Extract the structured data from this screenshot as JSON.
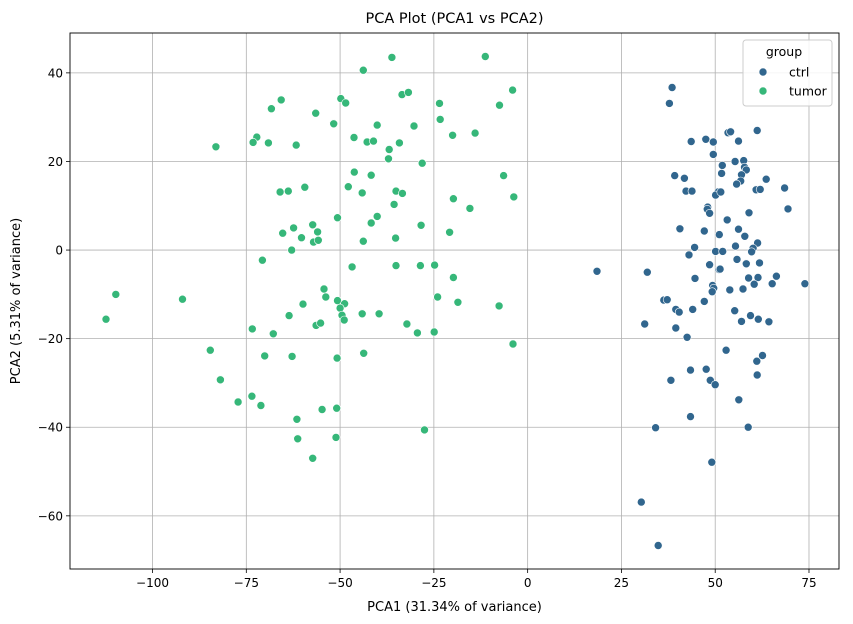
{
  "chart_data": {
    "type": "scatter",
    "title": "PCA Plot (PCA1 vs PCA2)",
    "xlabel": "PCA1 (31.34% of variance)",
    "ylabel": "PCA2 (5.31% of variance)",
    "xlim": [
      -122,
      83
    ],
    "ylim": [
      -72,
      49
    ],
    "xticks": [
      -100,
      -75,
      -50,
      -25,
      0,
      25,
      50,
      75
    ],
    "yticks": [
      -60,
      -40,
      -20,
      0,
      20,
      40
    ],
    "xtick_labels": [
      "−100",
      "−75",
      "−50",
      "−25",
      "0",
      "25",
      "50",
      "75"
    ],
    "ytick_labels": [
      "−60",
      "−40",
      "−20",
      "0",
      "20",
      "40"
    ],
    "grid": true,
    "legend": {
      "title": "group",
      "placement": "top-right"
    },
    "series": [
      {
        "name": "ctrl",
        "color": "#31668e",
        "points": [
          [
            38.5,
            36.7
          ],
          [
            37.8,
            33.1
          ],
          [
            43.6,
            24.5
          ],
          [
            47.5,
            25.0
          ],
          [
            49.5,
            24.4
          ],
          [
            53.4,
            26.5
          ],
          [
            54.1,
            26.7
          ],
          [
            56.2,
            24.6
          ],
          [
            61.2,
            27.0
          ],
          [
            49.5,
            21.6
          ],
          [
            55.3,
            20.0
          ],
          [
            57.6,
            20.2
          ],
          [
            51.9,
            19.1
          ],
          [
            57.8,
            18.7
          ],
          [
            58.3,
            18.1
          ],
          [
            39.2,
            16.8
          ],
          [
            41.8,
            16.2
          ],
          [
            51.7,
            17.3
          ],
          [
            57.0,
            17.0
          ],
          [
            63.6,
            16.0
          ],
          [
            56.8,
            15.6
          ],
          [
            55.7,
            14.9
          ],
          [
            42.2,
            13.3
          ],
          [
            43.8,
            13.3
          ],
          [
            50.8,
            13.1
          ],
          [
            50.1,
            12.4
          ],
          [
            51.5,
            13.1
          ],
          [
            60.9,
            13.6
          ],
          [
            62.0,
            13.7
          ],
          [
            68.5,
            14.0
          ],
          [
            48.0,
            9.7
          ],
          [
            47.9,
            9.2
          ],
          [
            48.5,
            8.3
          ],
          [
            59.0,
            8.4
          ],
          [
            69.4,
            9.3
          ],
          [
            53.2,
            6.8
          ],
          [
            40.6,
            4.8
          ],
          [
            47.1,
            4.3
          ],
          [
            56.2,
            4.7
          ],
          [
            51.1,
            3.5
          ],
          [
            57.9,
            3.1
          ],
          [
            61.3,
            1.6
          ],
          [
            55.4,
            0.9
          ],
          [
            60.1,
            0.4
          ],
          [
            59.7,
            -0.4
          ],
          [
            44.5,
            0.6
          ],
          [
            50.1,
            -0.3
          ],
          [
            43.0,
            -1.1
          ],
          [
            52.0,
            -0.3
          ],
          [
            55.8,
            -2.1
          ],
          [
            58.3,
            -3.1
          ],
          [
            61.8,
            -2.9
          ],
          [
            48.5,
            -3.3
          ],
          [
            51.0,
            -4.4
          ],
          [
            31.9,
            -5.0
          ],
          [
            18.5,
            -4.8
          ],
          [
            44.6,
            -6.4
          ],
          [
            51.3,
            -4.3
          ],
          [
            58.9,
            -6.3
          ],
          [
            61.4,
            -6.2
          ],
          [
            66.3,
            -5.9
          ],
          [
            65.2,
            -7.6
          ],
          [
            57.4,
            -8.8
          ],
          [
            49.3,
            -8.0
          ],
          [
            49.6,
            -8.6
          ],
          [
            49.2,
            -9.4
          ],
          [
            53.9,
            -9.0
          ],
          [
            60.4,
            -7.7
          ],
          [
            73.9,
            -7.6
          ],
          [
            36.3,
            -11.3
          ],
          [
            37.2,
            -11.2
          ],
          [
            39.5,
            -13.4
          ],
          [
            40.4,
            -14.0
          ],
          [
            44.0,
            -13.4
          ],
          [
            47.1,
            -11.6
          ],
          [
            55.2,
            -13.7
          ],
          [
            59.4,
            -14.8
          ],
          [
            31.2,
            -16.7
          ],
          [
            39.5,
            -17.6
          ],
          [
            57.0,
            -16.1
          ],
          [
            61.5,
            -15.6
          ],
          [
            64.3,
            -16.2
          ],
          [
            42.5,
            -19.7
          ],
          [
            52.9,
            -22.6
          ],
          [
            62.6,
            -23.8
          ],
          [
            61.1,
            -25.1
          ],
          [
            38.2,
            -29.4
          ],
          [
            43.4,
            -27.1
          ],
          [
            47.6,
            -26.9
          ],
          [
            48.7,
            -29.4
          ],
          [
            50.0,
            -30.4
          ],
          [
            61.2,
            -28.2
          ],
          [
            56.3,
            -33.8
          ],
          [
            43.4,
            -37.6
          ],
          [
            58.8,
            -40.0
          ],
          [
            34.1,
            -40.1
          ],
          [
            49.1,
            -47.9
          ],
          [
            30.3,
            -56.9
          ],
          [
            34.8,
            -66.7
          ]
        ]
      },
      {
        "name": "tumor",
        "color": "#36b779",
        "points": [
          [
            -36.2,
            43.5
          ],
          [
            -11.3,
            43.7
          ],
          [
            -43.8,
            40.6
          ],
          [
            -4.0,
            36.1
          ],
          [
            -33.5,
            35.1
          ],
          [
            -31.8,
            35.6
          ],
          [
            -49.8,
            34.2
          ],
          [
            -65.7,
            33.9
          ],
          [
            -48.5,
            33.2
          ],
          [
            -68.3,
            31.9
          ],
          [
            -23.5,
            33.1
          ],
          [
            -7.5,
            32.7
          ],
          [
            -56.5,
            30.9
          ],
          [
            -51.7,
            28.5
          ],
          [
            -40.1,
            28.2
          ],
          [
            -30.3,
            28.0
          ],
          [
            -23.3,
            29.5
          ],
          [
            -72.2,
            25.5
          ],
          [
            -73.2,
            24.3
          ],
          [
            -69.1,
            24.2
          ],
          [
            -61.7,
            23.7
          ],
          [
            -46.3,
            25.4
          ],
          [
            -42.8,
            24.4
          ],
          [
            -41.1,
            24.6
          ],
          [
            -36.9,
            22.7
          ],
          [
            -34.2,
            24.2
          ],
          [
            -20.0,
            25.9
          ],
          [
            -14.0,
            26.4
          ],
          [
            -83.1,
            23.3
          ],
          [
            -37.1,
            20.6
          ],
          [
            -28.1,
            19.6
          ],
          [
            -46.2,
            17.6
          ],
          [
            -41.7,
            16.9
          ],
          [
            -6.4,
            16.8
          ],
          [
            -47.8,
            14.3
          ],
          [
            -59.4,
            14.2
          ],
          [
            -66.0,
            13.1
          ],
          [
            -63.8,
            13.3
          ],
          [
            -35.1,
            13.3
          ],
          [
            -33.4,
            12.8
          ],
          [
            -44.1,
            12.9
          ],
          [
            -19.8,
            11.6
          ],
          [
            -3.7,
            12.0
          ],
          [
            -35.6,
            10.3
          ],
          [
            -15.4,
            9.4
          ],
          [
            -40.1,
            7.6
          ],
          [
            -50.7,
            7.3
          ],
          [
            -41.7,
            6.1
          ],
          [
            -57.3,
            5.7
          ],
          [
            -62.4,
            5.0
          ],
          [
            -56.0,
            4.1
          ],
          [
            -65.3,
            3.8
          ],
          [
            -60.3,
            2.8
          ],
          [
            -57.1,
            1.8
          ],
          [
            -55.8,
            2.2
          ],
          [
            -43.8,
            2.0
          ],
          [
            -35.2,
            2.7
          ],
          [
            -28.4,
            5.6
          ],
          [
            -20.8,
            4.0
          ],
          [
            -62.9,
            0.0
          ],
          [
            -70.7,
            -2.3
          ],
          [
            -35.1,
            -3.5
          ],
          [
            -28.6,
            -3.5
          ],
          [
            -24.8,
            -3.4
          ],
          [
            -46.8,
            -3.8
          ],
          [
            -19.8,
            -6.2
          ],
          [
            -54.3,
            -8.8
          ],
          [
            -53.8,
            -10.6
          ],
          [
            -50.7,
            -11.4
          ],
          [
            -48.8,
            -12.1
          ],
          [
            -50.0,
            -13.1
          ],
          [
            -44.1,
            -14.4
          ],
          [
            -39.6,
            -14.4
          ],
          [
            -24.0,
            -10.6
          ],
          [
            -18.6,
            -11.8
          ],
          [
            -7.6,
            -12.6
          ],
          [
            -112.4,
            -15.6
          ],
          [
            -109.8,
            -10.0
          ],
          [
            -92.0,
            -11.1
          ],
          [
            -59.9,
            -12.2
          ],
          [
            -63.6,
            -14.8
          ],
          [
            -49.5,
            -14.7
          ],
          [
            -48.9,
            -15.8
          ],
          [
            -56.4,
            -17.0
          ],
          [
            -55.2,
            -16.5
          ],
          [
            -73.4,
            -17.8
          ],
          [
            -67.8,
            -18.9
          ],
          [
            -32.2,
            -16.7
          ],
          [
            -29.4,
            -18.7
          ],
          [
            -24.9,
            -18.5
          ],
          [
            -3.9,
            -21.2
          ],
          [
            -84.6,
            -22.6
          ],
          [
            -70.1,
            -23.9
          ],
          [
            -62.8,
            -24.0
          ],
          [
            -50.8,
            -24.4
          ],
          [
            -43.7,
            -23.3
          ],
          [
            -81.9,
            -29.3
          ],
          [
            -73.5,
            -33.0
          ],
          [
            -77.2,
            -34.3
          ],
          [
            -71.1,
            -35.1
          ],
          [
            -54.8,
            -36.0
          ],
          [
            -50.9,
            -35.7
          ],
          [
            -61.5,
            -38.2
          ],
          [
            -27.5,
            -40.6
          ],
          [
            -61.3,
            -42.6
          ],
          [
            -51.1,
            -42.3
          ],
          [
            -57.3,
            -47.0
          ]
        ]
      }
    ]
  }
}
